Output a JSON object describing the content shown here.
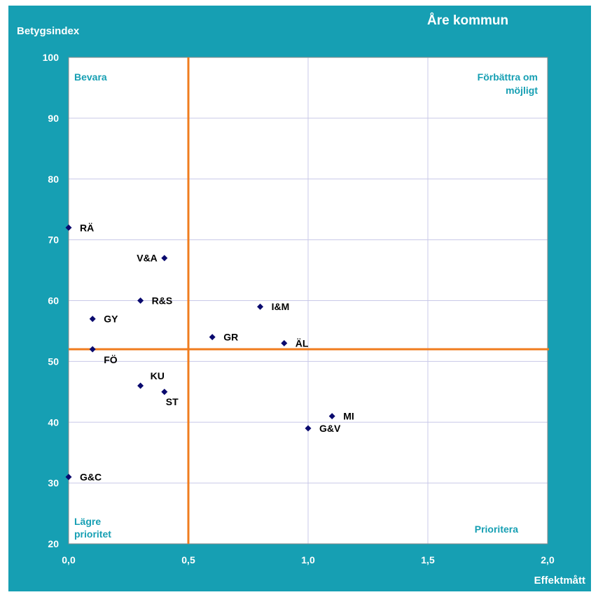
{
  "chart_data": {
    "type": "scatter",
    "title": "Åre kommun",
    "ylabel": "Betygsindex",
    "xlabel": "Effektmått",
    "xlim": [
      0,
      2
    ],
    "ylim": [
      20,
      100
    ],
    "x_ticks": [
      "0,0",
      "0,5",
      "1,0",
      "1,5",
      "2,0"
    ],
    "y_ticks": [
      "20",
      "30",
      "40",
      "50",
      "60",
      "70",
      "80",
      "90",
      "100"
    ],
    "grid": true,
    "reference_lines": {
      "x": 0.5,
      "y": 52
    },
    "quadrant_labels": {
      "top_left": "Bevara",
      "top_right": [
        "Förbättra om",
        "möjligt"
      ],
      "bottom_left": [
        "Lägre",
        "prioritet"
      ],
      "bottom_right": "Prioritera"
    },
    "points": [
      {
        "label": "RÄ",
        "x": 0.0,
        "y": 72
      },
      {
        "label": "V&A",
        "x": 0.4,
        "y": 67
      },
      {
        "label": "R&S",
        "x": 0.3,
        "y": 60
      },
      {
        "label": "I&M",
        "x": 0.8,
        "y": 59
      },
      {
        "label": "GY",
        "x": 0.1,
        "y": 57
      },
      {
        "label": "GR",
        "x": 0.6,
        "y": 54
      },
      {
        "label": "ÄL",
        "x": 0.9,
        "y": 53
      },
      {
        "label": "FÖ",
        "x": 0.1,
        "y": 52
      },
      {
        "label": "KU",
        "x": 0.3,
        "y": 46
      },
      {
        "label": "ST",
        "x": 0.4,
        "y": 45
      },
      {
        "label": "MI",
        "x": 1.1,
        "y": 41
      },
      {
        "label": "G&V",
        "x": 1.0,
        "y": 39
      },
      {
        "label": "G&C",
        "x": 0.0,
        "y": 31
      }
    ],
    "colors": {
      "frame": "#169fb3",
      "plot_background": "#ffffff",
      "grid": "#c8c8e8",
      "reference_line": "#f07c1e",
      "marker": "#0a0a6e",
      "quadrant_label": "#169fb3"
    }
  }
}
